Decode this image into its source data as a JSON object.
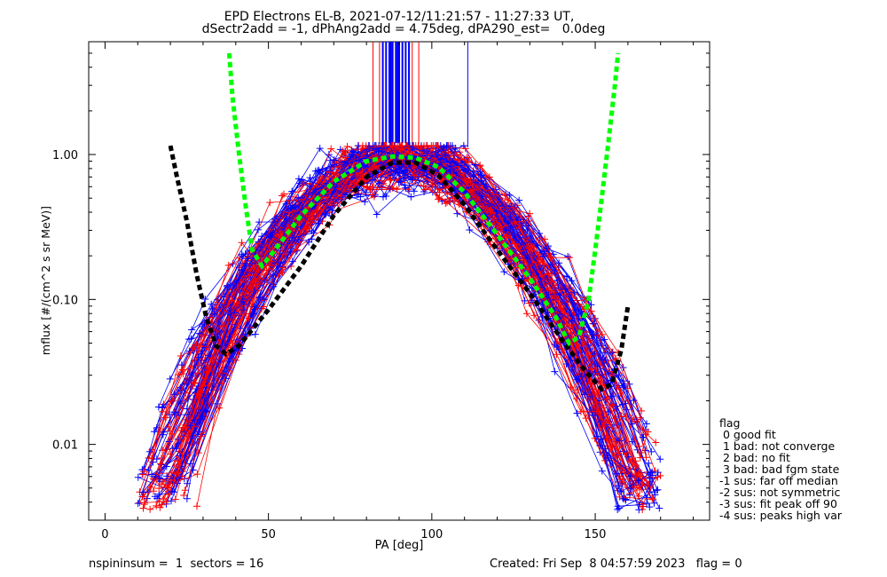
{
  "title": {
    "line1": "EPD Electrons EL-B, 2021-07-12/11:21:57 - 11:27:33 UT,",
    "line2": "dSectr2add = -1, dPhAng2add = 4.75deg, dPA290_est=   0.0deg"
  },
  "footer": {
    "left": "nspininsum =  1  sectors = 16",
    "right": "Created: Fri Sep  8 04:57:59 2023   flag = 0"
  },
  "legend": {
    "title": "flag",
    "items": [
      " 0 good fit",
      " 1 bad: not converge",
      " 2 bad: no fit",
      " 3 bad: bad fgm state",
      "-1 sus: far off median",
      "-2 sus: not symmetric",
      "-3 sus: fit peak off 90",
      "-4 sus: peaks high var"
    ]
  },
  "chart_data": {
    "type": "line",
    "xlabel": "PA [deg]",
    "ylabel": "mflux [#/(cm^2 s sr MeV)]",
    "xlim": [
      -5,
      185
    ],
    "ylim": [
      0.003,
      6.0
    ],
    "yscale": "log",
    "xticks": [
      0,
      50,
      100,
      150
    ],
    "yticks": [
      0.01,
      0.1,
      1.0
    ],
    "ytick_labels": [
      "0.01",
      "0.10",
      "1.00"
    ],
    "colors": {
      "red": "#ff0000",
      "blue": "#0000ff",
      "green": "#00ff00",
      "black": "#000000"
    },
    "reference_curves": [
      {
        "color": "black",
        "style": "dashed-thick",
        "points": [
          [
            20,
            1.15
          ],
          [
            22,
            0.7
          ],
          [
            25,
            0.35
          ],
          [
            28,
            0.15
          ],
          [
            31,
            0.075
          ],
          [
            34,
            0.048
          ],
          [
            37,
            0.042
          ],
          [
            41,
            0.048
          ],
          [
            50,
            0.085
          ],
          [
            60,
            0.17
          ],
          [
            70,
            0.38
          ],
          [
            80,
            0.7
          ],
          [
            88,
            0.88
          ],
          [
            95,
            0.88
          ],
          [
            102,
            0.72
          ],
          [
            110,
            0.45
          ],
          [
            120,
            0.22
          ],
          [
            130,
            0.11
          ],
          [
            140,
            0.052
          ],
          [
            147,
            0.032
          ],
          [
            152,
            0.024
          ],
          [
            155,
            0.026
          ],
          [
            158,
            0.045
          ],
          [
            160,
            0.09
          ]
        ]
      },
      {
        "color": "green",
        "style": "dashed-thick",
        "points": [
          [
            38,
            5.0
          ],
          [
            39,
            2.5
          ],
          [
            41,
            1.0
          ],
          [
            43,
            0.45
          ],
          [
            45,
            0.22
          ],
          [
            48,
            0.17
          ],
          [
            52,
            0.22
          ],
          [
            60,
            0.38
          ],
          [
            70,
            0.65
          ],
          [
            80,
            0.9
          ],
          [
            88,
            0.97
          ],
          [
            95,
            0.95
          ],
          [
            102,
            0.82
          ],
          [
            110,
            0.55
          ],
          [
            120,
            0.28
          ],
          [
            130,
            0.14
          ],
          [
            138,
            0.075
          ],
          [
            142,
            0.05
          ],
          [
            145,
            0.055
          ],
          [
            148,
            0.1
          ],
          [
            150,
            0.22
          ],
          [
            152,
            0.5
          ],
          [
            154,
            1.2
          ],
          [
            156,
            3.0
          ],
          [
            157,
            5.0
          ]
        ]
      }
    ],
    "vertical_lines": {
      "red_x": [
        82,
        84,
        86,
        88,
        90,
        92,
        94,
        96
      ],
      "blue_x": [
        85,
        86,
        87,
        87.5,
        88,
        89,
        89.5,
        90,
        91,
        92,
        93,
        111
      ]
    }
  }
}
